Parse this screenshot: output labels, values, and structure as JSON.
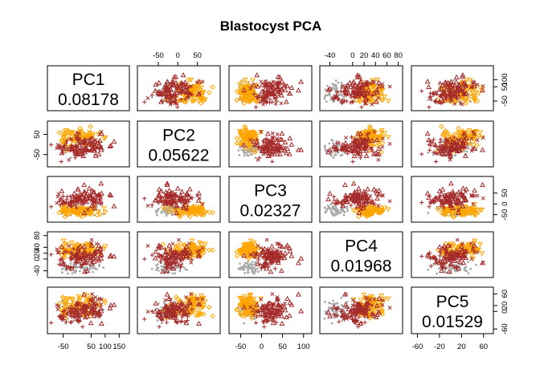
{
  "chart_data": {
    "type": "scatter-matrix",
    "title": "Blastocyst PCA",
    "variables": [
      {
        "name": "PC1",
        "variance": "0.08178",
        "range": [
          -95,
          175
        ],
        "ticks": [
          -50,
          0,
          50,
          100,
          150
        ]
      },
      {
        "name": "PC2",
        "variance": "0.05622",
        "range": [
          -95,
          100
        ],
        "ticks": [
          -50,
          0,
          50
        ]
      },
      {
        "name": "PC3",
        "variance": "0.02327",
        "range": [
          -70,
          112
        ],
        "ticks": [
          -50,
          0,
          50,
          100
        ]
      },
      {
        "name": "PC4",
        "variance": "0.01968",
        "range": [
          -52,
          82
        ],
        "ticks": [
          -40,
          0,
          20,
          40,
          60,
          80
        ]
      },
      {
        "name": "PC5",
        "variance": "0.01529",
        "range": [
          -65,
          72
        ],
        "ticks": [
          -60,
          -20,
          20,
          60
        ]
      }
    ],
    "axis_ticks": {
      "top": {
        "1": [
          "-50",
          "0",
          "50"
        ],
        "3": [
          "-40",
          "0",
          "20",
          "40",
          "60",
          "80"
        ]
      },
      "right": {
        "0": [
          "-50",
          "50",
          "100"
        ],
        "2": [
          "-50",
          "0",
          "50"
        ],
        "4": [
          "-60",
          "0",
          "20",
          "60"
        ]
      },
      "bottom": {
        "0": [
          "-50",
          "50",
          "100",
          "150"
        ],
        "2": [
          "-50",
          "0",
          "50",
          "100"
        ],
        "4": [
          "-60",
          "-20",
          "20",
          "60"
        ]
      },
      "left": {
        "1": [
          "-50",
          "50"
        ],
        "3": [
          "-40",
          "0",
          "20",
          "40",
          "80"
        ]
      }
    },
    "groups": [
      {
        "marker": "point",
        "color": "#a9a9a9",
        "count": 60,
        "center": [
          15,
          -25,
          -30,
          -30,
          5
        ],
        "spread": [
          40,
          22,
          12,
          10,
          14
        ]
      },
      {
        "marker": "diamond",
        "color": "#ffa500",
        "count": 55,
        "center": [
          0,
          30,
          -35,
          30,
          10
        ],
        "spread": [
          40,
          25,
          12,
          12,
          16
        ]
      },
      {
        "marker": "triangle-down",
        "color": "#ffa500",
        "count": 30,
        "center": [
          5,
          45,
          -30,
          35,
          30
        ],
        "spread": [
          35,
          15,
          12,
          14,
          12
        ]
      },
      {
        "marker": "triangle",
        "color": "#a52a2a",
        "count": 55,
        "center": [
          30,
          -15,
          20,
          10,
          10
        ],
        "spread": [
          35,
          30,
          25,
          20,
          20
        ]
      },
      {
        "marker": "plus",
        "color": "#a52a2a",
        "count": 40,
        "center": [
          -10,
          -10,
          10,
          0,
          -15
        ],
        "spread": [
          40,
          25,
          12,
          18,
          14
        ]
      },
      {
        "marker": "cross",
        "color": "#a52a2a",
        "count": 20,
        "center": [
          20,
          0,
          25,
          15,
          25
        ],
        "spread": [
          50,
          30,
          22,
          18,
          12
        ]
      }
    ]
  }
}
